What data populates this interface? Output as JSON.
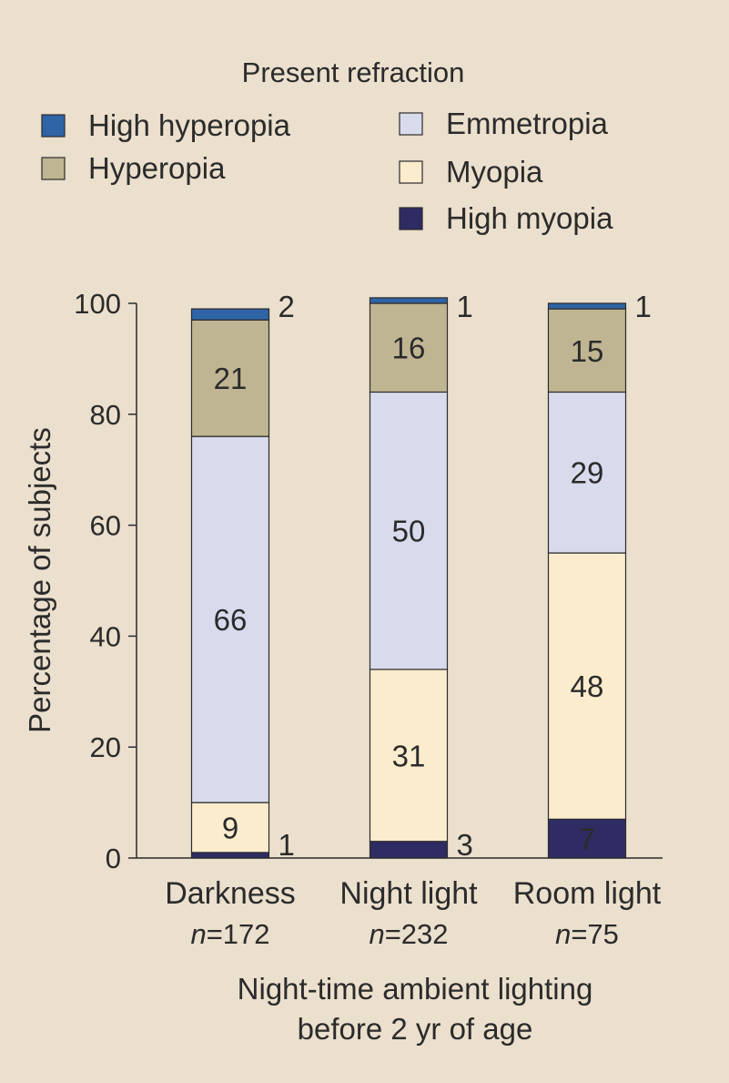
{
  "chart_data": {
    "type": "bar",
    "stacked": true,
    "legend": {
      "title": "Present refraction",
      "placement": "top"
    },
    "categories": [
      "Darkness",
      "Night light",
      "Room light"
    ],
    "n_prefix": "n",
    "n_values": [
      "=172",
      "=232",
      "=75"
    ],
    "series": [
      {
        "name": "High myopia",
        "color": "#2f2c63",
        "values": [
          1,
          3,
          7
        ]
      },
      {
        "name": "Myopia",
        "color": "#fbeccd",
        "values": [
          9,
          31,
          48
        ]
      },
      {
        "name": "Emmetropia",
        "color": "#d7dbec",
        "values": [
          66,
          50,
          29
        ]
      },
      {
        "name": "Hyperopia",
        "color": "#bfb592",
        "values": [
          21,
          16,
          15
        ]
      },
      {
        "name": "High hyperopia",
        "color": "#2f64a6",
        "values": [
          2,
          1,
          1
        ]
      }
    ],
    "ylabel": "Percentage of subjects",
    "ylim": [
      0,
      100
    ],
    "yticks": [
      0,
      20,
      40,
      60,
      80,
      100
    ],
    "xlabel_line1": "Night-time ambient lighting",
    "xlabel_line2": "before 2 yr of age",
    "grid": false
  }
}
